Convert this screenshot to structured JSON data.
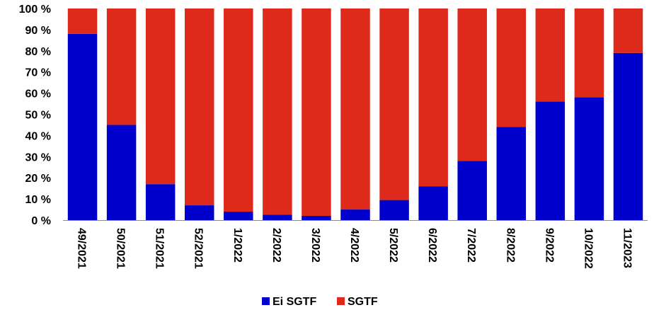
{
  "chart_data": {
    "type": "bar",
    "stacked": true,
    "percent_axis": true,
    "title": "",
    "xlabel": "",
    "ylabel": "",
    "ylim": [
      0,
      100
    ],
    "yticks": [
      0,
      10,
      20,
      30,
      40,
      50,
      60,
      70,
      80,
      90,
      100
    ],
    "ytick_labels": [
      "0 %",
      "10 %",
      "20 %",
      "30 %",
      "40 %",
      "50 %",
      "60 %",
      "70 %",
      "80 %",
      "90 %",
      "100 %"
    ],
    "grid": false,
    "legend_position": "bottom",
    "categories": [
      "49/2021",
      "50/2021",
      "51/2021",
      "52/2021",
      "1/2022",
      "2/2022",
      "3/2022",
      "4/2022",
      "5/2022",
      "6/2022",
      "7/2022",
      "8/2022",
      "9/2022",
      "10/2022",
      "11/2023"
    ],
    "series": [
      {
        "name": "Ei SGTF",
        "color": "#0000CC",
        "values": [
          88,
          45,
          17,
          7,
          4,
          2.5,
          2,
          5,
          9.5,
          16,
          28,
          44,
          56,
          58,
          79
        ]
      },
      {
        "name": "SGTF",
        "color": "#DD2A1B",
        "values": [
          12,
          55,
          83,
          93,
          96,
          97.5,
          98,
          95,
          90.5,
          84,
          72,
          56,
          44,
          42,
          21
        ]
      }
    ]
  }
}
